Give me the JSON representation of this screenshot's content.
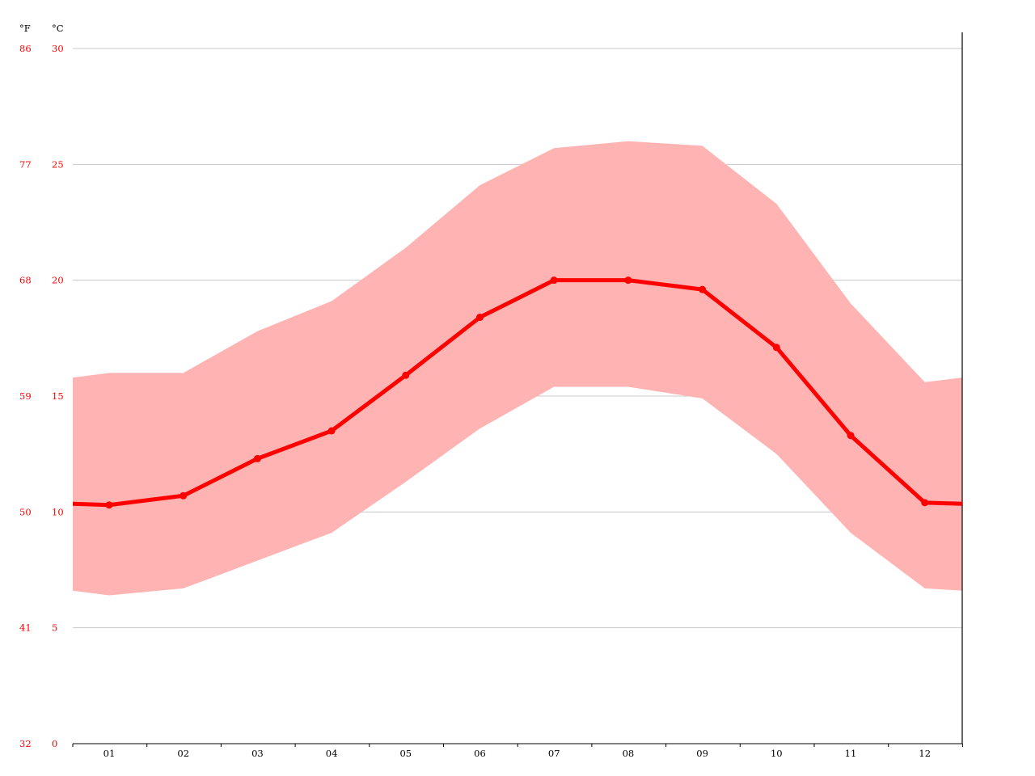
{
  "chart_data": {
    "type": "line",
    "title": "",
    "xlabel": "",
    "ylabel": "",
    "units": {
      "fahrenheit": "°F",
      "celsius": "°C"
    },
    "categories": [
      "01",
      "02",
      "03",
      "04",
      "05",
      "06",
      "07",
      "08",
      "09",
      "10",
      "11",
      "12"
    ],
    "y_ticks_celsius": [
      "0",
      "5",
      "10",
      "15",
      "20",
      "25",
      "30"
    ],
    "y_ticks_fahrenheit": [
      "32",
      "41",
      "50",
      "59",
      "68",
      "77",
      "86"
    ],
    "ylim": [
      0,
      30
    ],
    "grid": true,
    "series": [
      {
        "role": "mean",
        "values": [
          10.3,
          10.7,
          12.3,
          13.5,
          15.9,
          18.4,
          20.0,
          20.0,
          19.6,
          17.1,
          13.3,
          10.4
        ]
      },
      {
        "role": "max",
        "values": [
          16.0,
          16.0,
          17.8,
          19.1,
          21.4,
          24.1,
          25.7,
          26.0,
          25.8,
          23.3,
          19.0,
          15.6
        ]
      },
      {
        "role": "min",
        "values": [
          6.4,
          6.7,
          7.9,
          9.1,
          11.3,
          13.6,
          15.4,
          15.4,
          14.9,
          12.5,
          9.1,
          6.7
        ]
      }
    ],
    "edge_values": {
      "mean": 10.35,
      "max": 15.8,
      "min": 6.6
    },
    "colors": {
      "line": "#ff0000",
      "band": "#ffb3b3",
      "grid": "#c8c8c8",
      "axis_text": "#ff0000"
    }
  }
}
